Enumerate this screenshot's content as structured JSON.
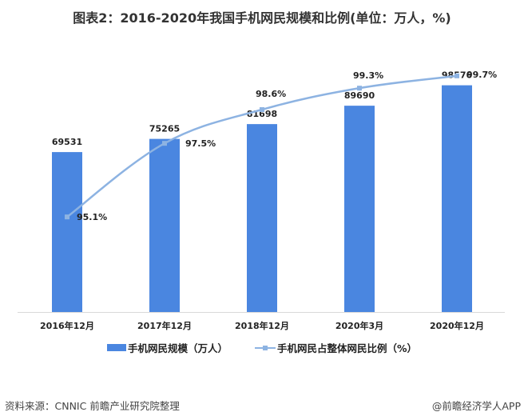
{
  "title": "图表2：2016-2020年我国手机网民规模和比例(单位：万人，%)",
  "chart_data": {
    "type": "bar+line",
    "title": "图表2：2016-2020年我国手机网民规模和比例(单位：万人，%)",
    "categories": [
      "2016年12月",
      "2017年12月",
      "2018年12月",
      "2020年3月",
      "2020年12月"
    ],
    "series": [
      {
        "name": "手机网民规模（万人）",
        "type": "bar",
        "axis": "primary",
        "color": "#4a86e0",
        "values": [
          69531,
          75265,
          81698,
          89690,
          98576
        ],
        "labels": [
          "69531",
          "75265",
          "81698",
          "89690",
          "98576"
        ]
      },
      {
        "name": "手机网民占整体网民比例（%）",
        "type": "line",
        "axis": "secondary",
        "color": "#8db3e2",
        "values": [
          95.1,
          97.5,
          98.6,
          99.3,
          99.7
        ],
        "labels": [
          "95.1%",
          "97.5%",
          "98.6%",
          "99.3%",
          "99.7%"
        ]
      }
    ],
    "ylim": [
      0,
      120000
    ],
    "y2lim": [
      92,
      101
    ],
    "grid": false,
    "legend": "bottom"
  },
  "footer": {
    "source": "资料来源：CNNIC 前瞻产业研究院整理",
    "credit": "@前瞻经济学人APP"
  }
}
